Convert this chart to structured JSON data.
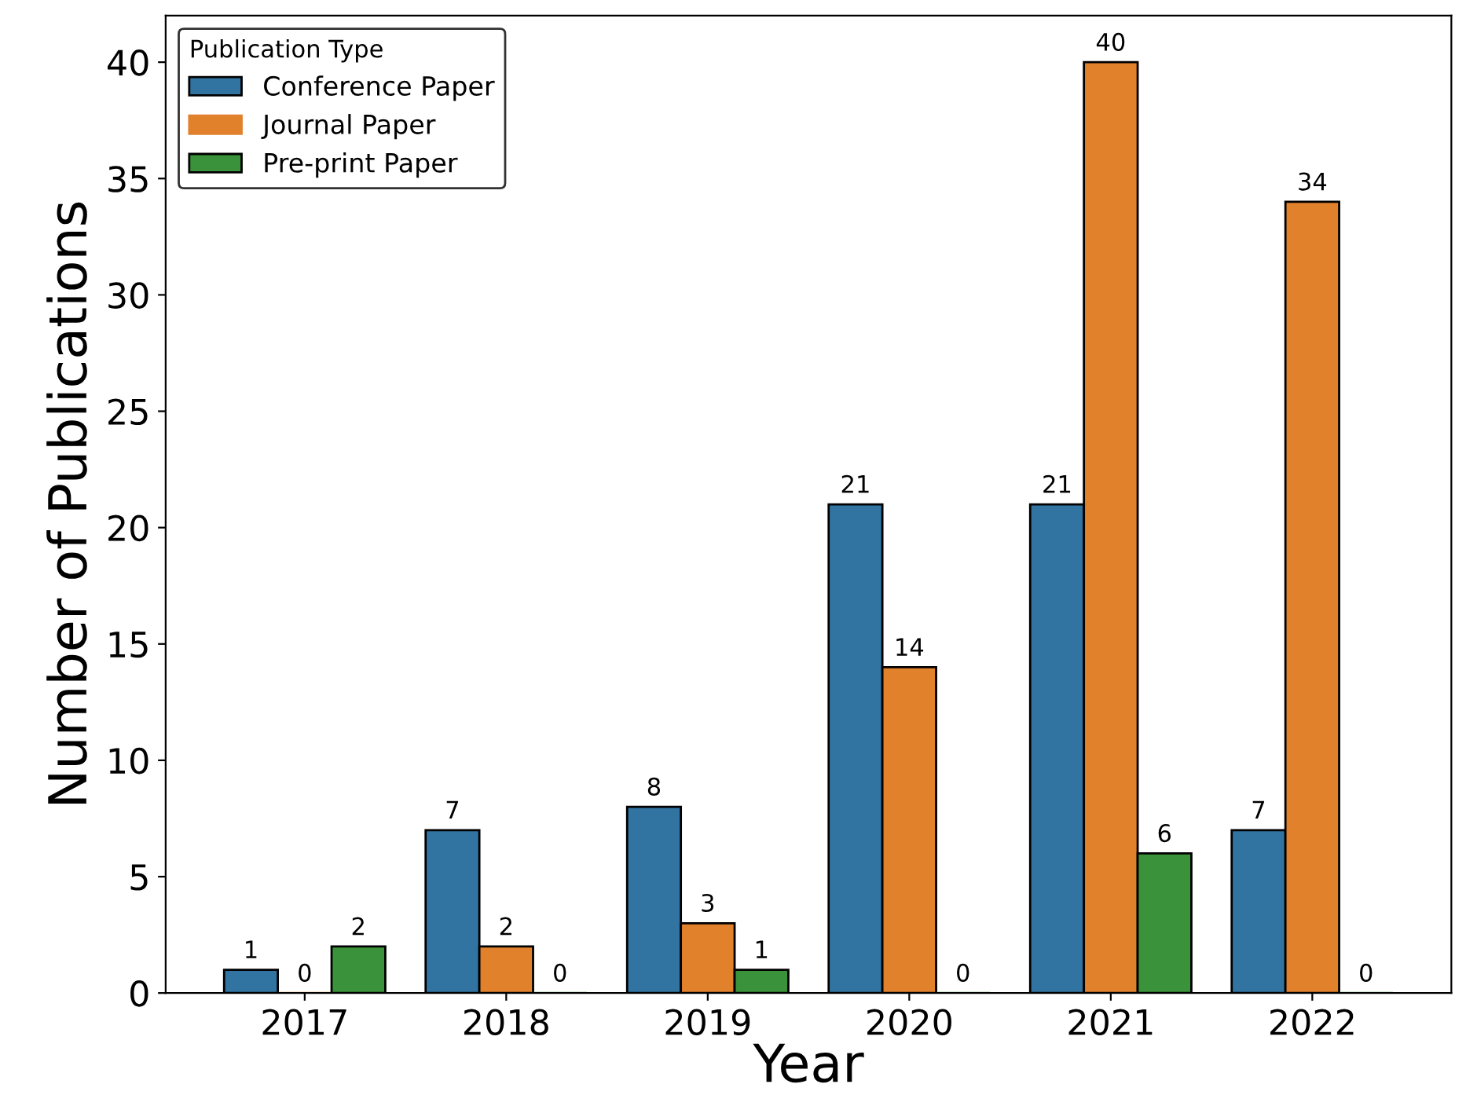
{
  "chart_data": {
    "type": "bar",
    "xlabel": "Year",
    "ylabel": "Number of Publications",
    "legend_title": "Publication Type",
    "categories": [
      "2017",
      "2018",
      "2019",
      "2020",
      "2021",
      "2022"
    ],
    "series": [
      {
        "name": "Conference Paper",
        "color": "#3274a1",
        "values": [
          1,
          7,
          8,
          21,
          21,
          7
        ]
      },
      {
        "name": "Journal Paper",
        "color": "#e1812c",
        "values": [
          0,
          2,
          3,
          14,
          40,
          34
        ]
      },
      {
        "name": "Pre-print Paper",
        "color": "#3a923a",
        "values": [
          2,
          0,
          1,
          0,
          6,
          0
        ]
      }
    ],
    "ylim": [
      0,
      42
    ],
    "yticks": [
      0,
      5,
      10,
      15,
      20,
      25,
      30,
      35,
      40
    ],
    "data_labels": true,
    "legend": "top left",
    "grid": false
  }
}
